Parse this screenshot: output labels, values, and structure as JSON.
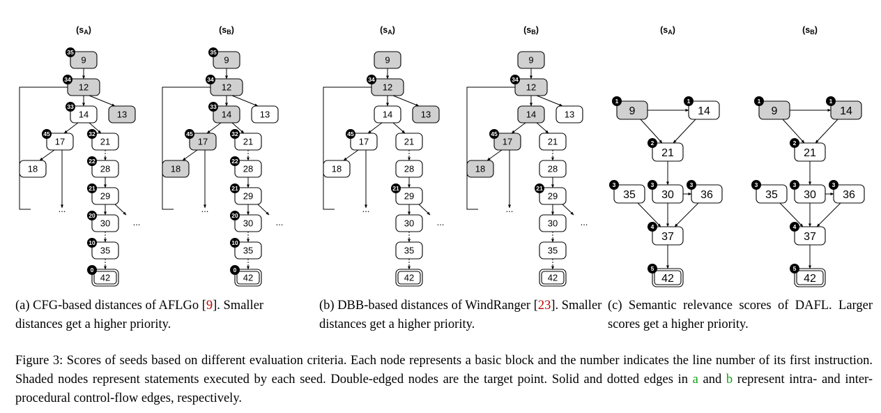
{
  "panels": [
    {
      "id": "a",
      "cols": [
        {
          "title": "s",
          "title_sub": "A",
          "shaded": [
            "9",
            "12",
            "13"
          ],
          "scores": {
            "9": "35",
            "12": "34",
            "14": "33",
            "17": "45",
            "21": "32",
            "28": "22",
            "29": "21",
            "30": "20",
            "35": "10",
            "42": "0"
          }
        },
        {
          "title": "s",
          "title_sub": "B",
          "shaded": [
            "9",
            "12",
            "14",
            "17",
            "18"
          ],
          "scores": {
            "9": "35",
            "12": "34",
            "14": "33",
            "17": "45",
            "21": "32",
            "28": "22",
            "29": "21",
            "30": "20",
            "35": "10",
            "42": "0"
          }
        }
      ]
    },
    {
      "id": "b",
      "cols": [
        {
          "title": "s",
          "title_sub": "A",
          "shaded": [
            "9",
            "12",
            "13"
          ],
          "scores": {
            "12": "34",
            "17": "45",
            "29": "21"
          }
        },
        {
          "title": "s",
          "title_sub": "B",
          "shaded": [
            "9",
            "12",
            "14",
            "17",
            "18"
          ],
          "scores": {
            "12": "34",
            "17": "45",
            "29": "21"
          }
        }
      ]
    },
    {
      "id": "c",
      "cols": [
        {
          "title": "s",
          "title_sub": "A",
          "shaded": [
            "9"
          ],
          "scores": {
            "9": "1",
            "14": "1",
            "21": "2",
            "35": "3",
            "30": "3",
            "36": "3",
            "37": "4",
            "42": "5"
          }
        },
        {
          "title": "s",
          "title_sub": "B",
          "shaded": [
            "9",
            "14"
          ],
          "scores": {
            "9": "1",
            "14": "1",
            "21": "2",
            "35": "3",
            "30": "3",
            "36": "3",
            "37": "4",
            "42": "5"
          }
        }
      ]
    }
  ],
  "cfg_labels": {
    "9": "9",
    "12": "12",
    "14": "14",
    "13": "13",
    "17": "17",
    "21": "21",
    "18": "18",
    "28": "28",
    "29": "29",
    "30": "30",
    "35": "35",
    "42": "42"
  },
  "sem_labels": {
    "9": "9",
    "14": "14",
    "21": "21",
    "35": "35",
    "30": "30",
    "36": "36",
    "37": "37",
    "42": "42"
  },
  "ellipsis": "...",
  "captions": {
    "a": {
      "label": "(a) CFG-based distances of AFLGo [",
      "ref": "9",
      "rest": "]. Smaller distances get a higher priority."
    },
    "b": {
      "label": "(b) DBB-based distances of WindRanger [",
      "ref": "23",
      "rest": "]. Smaller distances get a higher priority."
    },
    "c": {
      "text": "(c) Semantic relevance scores of DAFL. Larger scores get a higher priority."
    },
    "figure": {
      "p1": "Figure 3: Scores of seeds based on different evaluation criteria. Each node represents a basic block and the number indicates the line number of its first instruction. Shaded nodes represent statements executed by each seed. Double-edged nodes are the target point. Solid and dotted edges in ",
      "a": "a",
      "p2": " and ",
      "b": "b",
      "p3": " represent intra- and inter-procedural control-flow edges, respectively."
    }
  }
}
